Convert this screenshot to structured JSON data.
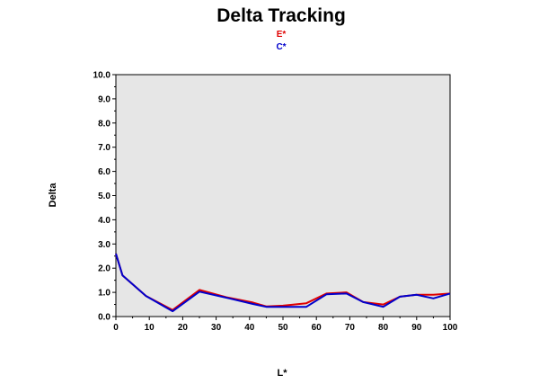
{
  "chart_data": {
    "type": "line",
    "title": "Delta Tracking",
    "xlabel": "L*",
    "ylabel": "Delta",
    "xlim": [
      0,
      100
    ],
    "ylim": [
      0,
      10
    ],
    "x_ticks": [
      "0",
      "10",
      "20",
      "30",
      "40",
      "50",
      "60",
      "70",
      "80",
      "90",
      "100"
    ],
    "y_ticks": [
      "0.0",
      "1.0",
      "2.0",
      "3.0",
      "4.0",
      "5.0",
      "6.0",
      "7.0",
      "8.0",
      "9.0",
      "10.0"
    ],
    "grid": false,
    "plot_background": "#e6e6e6",
    "legend_position": "top-center",
    "series": [
      {
        "name": "E*",
        "color": "#e00000",
        "x": [
          0,
          2,
          9,
          17,
          25,
          33,
          41,
          45,
          50,
          57,
          63,
          69,
          74,
          80,
          85,
          90,
          95,
          100
        ],
        "y": [
          2.6,
          1.7,
          0.85,
          0.27,
          1.1,
          0.8,
          0.58,
          0.42,
          0.45,
          0.55,
          0.95,
          1.0,
          0.6,
          0.5,
          0.82,
          0.9,
          0.9,
          0.95
        ]
      },
      {
        "name": "C*",
        "color": "#0000cc",
        "x": [
          0,
          2,
          9,
          17,
          25,
          33,
          41,
          45,
          50,
          57,
          63,
          69,
          74,
          80,
          85,
          90,
          95,
          100
        ],
        "y": [
          2.6,
          1.7,
          0.85,
          0.22,
          1.03,
          0.78,
          0.52,
          0.4,
          0.4,
          0.4,
          0.92,
          0.95,
          0.6,
          0.4,
          0.82,
          0.9,
          0.75,
          0.95
        ]
      }
    ]
  }
}
